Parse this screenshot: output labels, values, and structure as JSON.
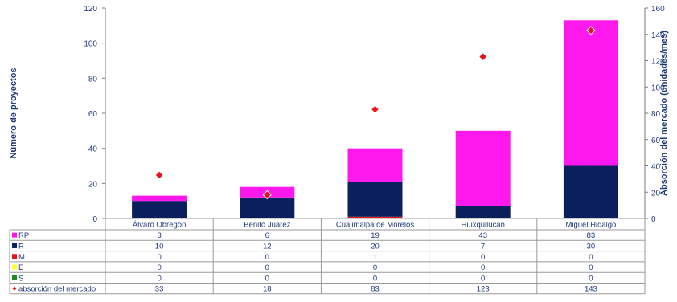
{
  "chart_data": {
    "type": "bar",
    "stacked": true,
    "categories": [
      "Álvaro Obregón",
      "Benito Juárez",
      "Cuajimalpa de Morelos",
      "Huixquilucan",
      "Miguel Hidalgo"
    ],
    "series": [
      {
        "name": "S",
        "color": "#1f8a1f",
        "values": [
          0,
          0,
          0,
          0,
          0
        ]
      },
      {
        "name": "E",
        "color": "#ffff33",
        "values": [
          0,
          0,
          0,
          0,
          0
        ]
      },
      {
        "name": "M",
        "color": "#e8141c",
        "values": [
          0,
          0,
          1,
          0,
          0
        ]
      },
      {
        "name": "R",
        "color": "#0b1f5c",
        "values": [
          10,
          12,
          20,
          7,
          30
        ]
      },
      {
        "name": "RP",
        "color": "#ff18ec",
        "values": [
          3,
          6,
          19,
          43,
          83
        ]
      }
    ],
    "line_series": {
      "name": "absorción del mercado",
      "color": "#e8141c",
      "marker": "diamond",
      "axis": "right",
      "values": [
        33,
        18,
        83,
        123,
        143
      ]
    },
    "table_rows": [
      "RP",
      "R",
      "M",
      "E",
      "S",
      "absorción del mercado"
    ],
    "ylabel": "Número de proyectos",
    "ylabel_right": "Absorción del mercado (unidades/mes)",
    "ylim": [
      0,
      120
    ],
    "ylim_right": [
      0,
      160
    ],
    "yticks": [
      0,
      20,
      40,
      60,
      80,
      100,
      120
    ],
    "yticks_right": [
      0,
      20,
      40,
      60,
      80,
      100,
      120,
      140,
      160
    ],
    "grid": false,
    "legend": "data-table"
  }
}
